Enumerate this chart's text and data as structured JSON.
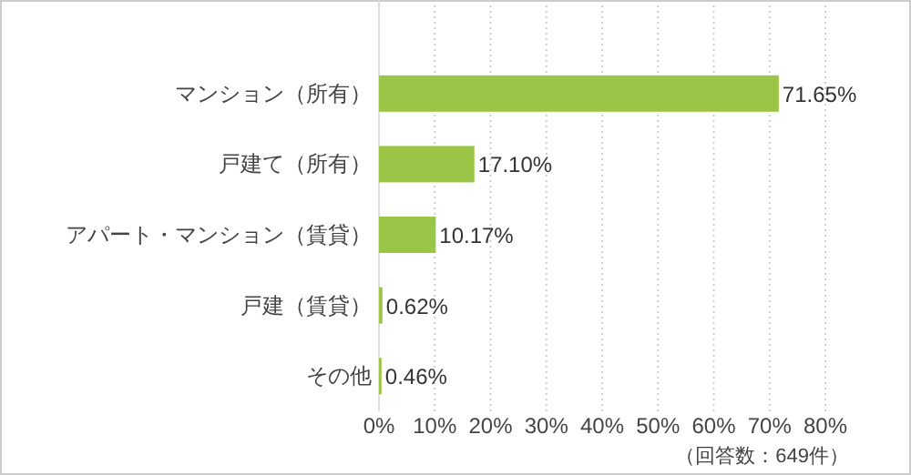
{
  "chart_data": {
    "type": "bar",
    "orientation": "horizontal",
    "categories": [
      "マンション（所有）",
      "戸建て（所有）",
      "アパート・マンション（賃貸）",
      "戸建（賃貸）",
      "その他"
    ],
    "values": [
      71.65,
      17.1,
      10.17,
      0.62,
      0.46
    ],
    "value_labels": [
      "71.65%",
      "17.10%",
      "10.17%",
      "0.62%",
      "0.46%"
    ],
    "color": "#9ac546",
    "xlim": [
      0,
      80
    ],
    "xticks": [
      {
        "value": 0,
        "label": "0%"
      },
      {
        "value": 10,
        "label": "10%"
      },
      {
        "value": 20,
        "label": "20%"
      },
      {
        "value": 30,
        "label": "30%"
      },
      {
        "value": 40,
        "label": "40%"
      },
      {
        "value": 50,
        "label": "50%"
      },
      {
        "value": 60,
        "label": "60%"
      },
      {
        "value": 70,
        "label": "70%"
      },
      {
        "value": 80,
        "label": "80%"
      }
    ],
    "grid": "x",
    "annotations": [
      "（回答数：649件）"
    ]
  }
}
